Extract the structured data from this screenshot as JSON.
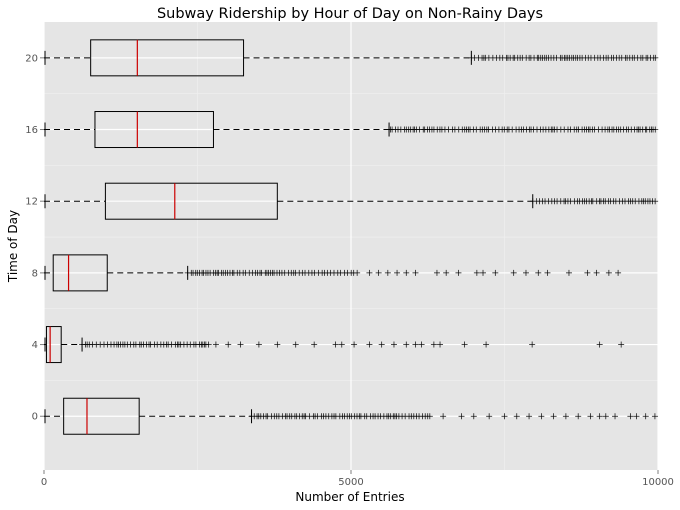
{
  "chart_data": {
    "type": "boxplot",
    "orientation": "horizontal",
    "title": "Subway Ridership by Hour of Day on Non-Rainy Days",
    "xlabel": "Number of Entries",
    "ylabel": "Time of Day",
    "xlim": [
      0,
      10000
    ],
    "ylim": [
      -3,
      22
    ],
    "xticks": [
      0,
      5000,
      10000
    ],
    "yticks": [
      0,
      4,
      8,
      12,
      16,
      20
    ],
    "grid": true,
    "background": "#e5e5e5",
    "grid_major_color": "#ffffff",
    "box_color": "#000000",
    "median_color": "#cc0000",
    "boxes": [
      {
        "label": "0",
        "hour": 0,
        "whisker_low": 0,
        "q1": 320,
        "median": 700,
        "q3": 1550,
        "whisker_high": 3380,
        "outliers_dense": [
          3380,
          6300
        ],
        "outliers_sparse": [
          6500,
          6800,
          7000,
          7250,
          7500,
          7700,
          7900,
          8100,
          8300,
          8500,
          8700,
          8900,
          9050,
          9150,
          9300,
          9550,
          9650,
          9800,
          9950
        ]
      },
      {
        "label": "4",
        "hour": 4,
        "whisker_low": 0,
        "q1": 40,
        "median": 100,
        "q3": 280,
        "whisker_high": 620,
        "outliers_dense": [
          620,
          2700
        ],
        "outliers_sparse": [
          2800,
          3000,
          3200,
          3500,
          3800,
          4100,
          4400,
          4750,
          4850,
          5050,
          5300,
          5500,
          5700,
          5900,
          6050,
          6150,
          6350,
          6450,
          6850,
          7200,
          7950,
          9050,
          9400
        ]
      },
      {
        "label": "8",
        "hour": 8,
        "whisker_low": 0,
        "q1": 150,
        "median": 400,
        "q3": 1030,
        "whisker_high": 2340,
        "outliers_dense": [
          2340,
          5050
        ],
        "outliers_sparse": [
          5100,
          5300,
          5450,
          5600,
          5750,
          5900,
          6050,
          6400,
          6550,
          6750,
          7050,
          7150,
          7350,
          7650,
          7850,
          8050,
          8200,
          8550,
          8850,
          9000,
          9200,
          9350,
          10000
        ]
      },
      {
        "label": "12",
        "hour": 12,
        "whisker_low": 0,
        "q1": 1000,
        "median": 2130,
        "q3": 3800,
        "whisker_high": 7960,
        "outliers_dense": [
          7960,
          10000
        ],
        "outliers_sparse": []
      },
      {
        "label": "16",
        "hour": 16,
        "whisker_low": 0,
        "q1": 830,
        "median": 1520,
        "q3": 2760,
        "whisker_high": 5620,
        "outliers_dense": [
          5620,
          10000
        ],
        "outliers_sparse": []
      },
      {
        "label": "20",
        "hour": 20,
        "whisker_low": 0,
        "q1": 760,
        "median": 1520,
        "q3": 3250,
        "whisker_high": 6960,
        "outliers_dense": [
          6960,
          10000
        ],
        "outliers_sparse": []
      }
    ]
  }
}
